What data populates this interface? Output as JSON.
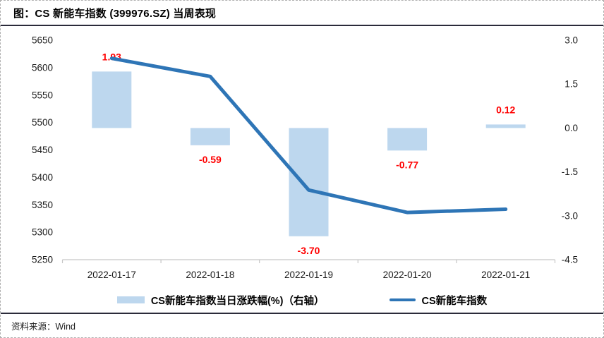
{
  "header": {
    "title": "图：CS 新能车指数 (399976.SZ) 当周表现"
  },
  "footer": {
    "source": "资料来源：Wind"
  },
  "colors": {
    "bar_fill": "#BDD7EE",
    "line_stroke": "#2E75B6",
    "value_label": "#FF0000",
    "axis_line": "#C6C6C6",
    "axis_text": "#1A1A1A",
    "divider": "#2B2B3A"
  },
  "chart_data": {
    "type": "bar+line",
    "title": "图：CS 新能车指数 (399976.SZ) 当周表现",
    "categories": [
      "2022-01-17",
      "2022-01-18",
      "2022-01-19",
      "2022-01-20",
      "2022-01-21"
    ],
    "series": [
      {
        "name": "CS新能车指数当日涨跌幅(%)（右轴）",
        "type": "bar",
        "axis": "right",
        "values": [
          1.93,
          -0.59,
          -3.7,
          -0.77,
          0.12
        ],
        "data_labels": [
          "1.93",
          "-0.59",
          "-3.70",
          "-0.77",
          "0.12"
        ]
      },
      {
        "name": "CS新能车指数",
        "type": "line",
        "axis": "left",
        "values": [
          5617,
          5584,
          5377,
          5336,
          5342
        ]
      }
    ],
    "left_axis": {
      "range": [
        5250,
        5650
      ],
      "tick_step": 50,
      "tick_labels": [
        "5650",
        "5600",
        "5550",
        "5500",
        "5450",
        "5400",
        "5350",
        "5300",
        "5250"
      ]
    },
    "right_axis": {
      "range": [
        -4.5,
        3.0
      ],
      "tick_step": 1.5,
      "tick_labels": [
        "3.0",
        "1.5",
        "0.0",
        "-1.5",
        "-3.0",
        "-4.5"
      ]
    },
    "legend_position": "bottom",
    "grid": false
  }
}
